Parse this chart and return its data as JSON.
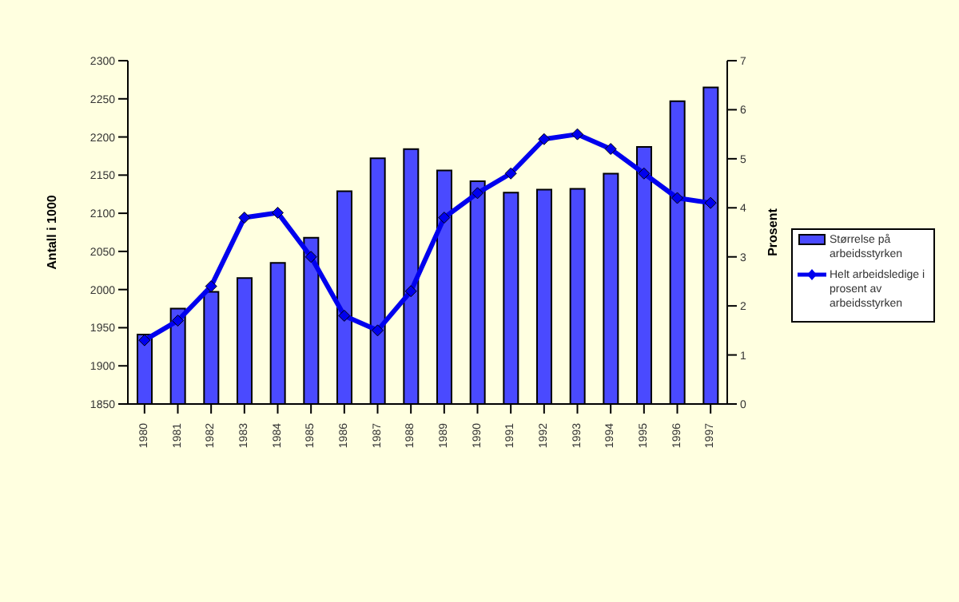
{
  "chart_data": {
    "type": "bar",
    "xlabel": null,
    "ylabel": "Antall i 1000",
    "y2label": "Prosent",
    "categories": [
      "1980",
      "1981",
      "1982",
      "1983",
      "1984",
      "1985",
      "1986",
      "1987",
      "1988",
      "1989",
      "1990",
      "1991",
      "1992",
      "1993",
      "1994",
      "1995",
      "1996",
      "1997"
    ],
    "series": [
      {
        "name": "Størrelse på arbeidsstyrken",
        "color": "#4a4aff",
        "values": [
          1941,
          1975,
          1997,
          2015,
          2035,
          2068,
          2129,
          2172,
          2184,
          2156,
          2142,
          2127,
          2131,
          2132,
          2152,
          2187,
          2247,
          2265
        ]
      },
      {
        "name": "Helt arbeidsledige i prosent av arbeidsstyrken",
        "type": "line",
        "axis": "y2",
        "color": "#0000ee",
        "marker": "diamond",
        "values": [
          1.3,
          1.7,
          2.4,
          3.8,
          3.9,
          3.0,
          1.8,
          1.5,
          2.3,
          3.8,
          4.3,
          4.7,
          5.4,
          5.5,
          5.2,
          4.7,
          4.2,
          4.1
        ]
      }
    ],
    "ylim": [
      1850,
      2300
    ],
    "yticks": [
      1850,
      1900,
      1950,
      2000,
      2050,
      2100,
      2150,
      2200,
      2250,
      2300
    ],
    "y2lim": [
      0,
      7
    ],
    "y2ticks": [
      0,
      1,
      2,
      3,
      4,
      5,
      6,
      7
    ],
    "grid": false,
    "legend": "right"
  }
}
